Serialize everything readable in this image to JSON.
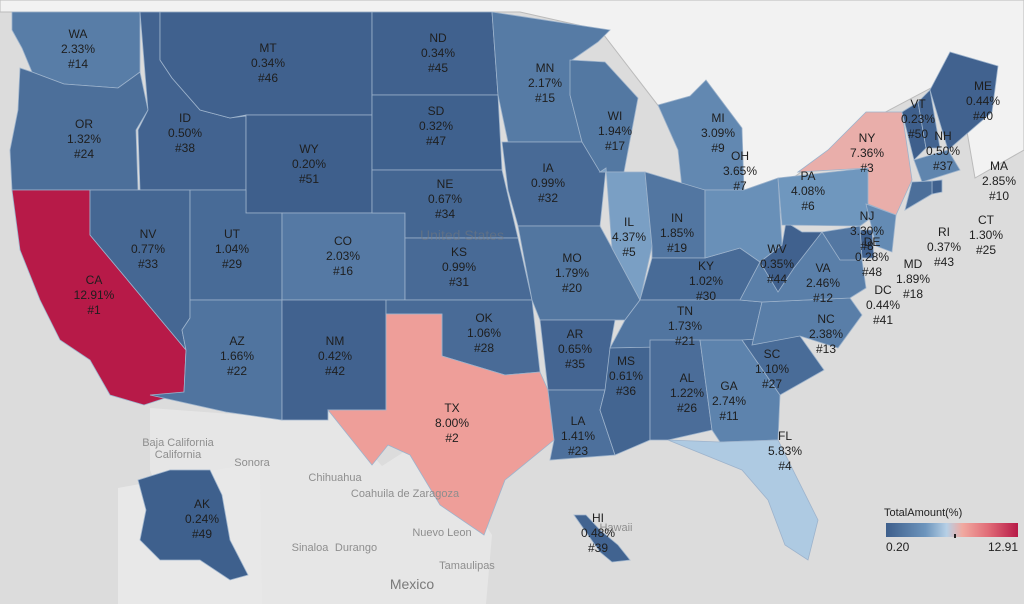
{
  "legend": {
    "title": "TotalAmount(%)",
    "min": "0.20",
    "max": "12.91"
  },
  "colors": {
    "low": "#3e5f8c",
    "mid": "#b6d0e6",
    "high": "#b71a48",
    "ocean": "#dcdcdc",
    "land": "#f2f2f2",
    "mexico": "#e6e6e6"
  },
  "geo_labels": [
    "Baja California",
    "Sonora",
    "Chihuahua",
    "Coahuila de Zaragoza",
    "Nuevo Leon",
    "Sinaloa",
    "Durango",
    "Tamaulipas",
    "Mexico",
    "United States",
    "Hawaii"
  ],
  "chart_data": {
    "type": "map",
    "measure": "TotalAmount(%)",
    "color_range": [
      0.2,
      12.91
    ],
    "states": [
      {
        "abbr": "WA",
        "value": 2.33,
        "rank": 14
      },
      {
        "abbr": "OR",
        "value": 1.32,
        "rank": 24
      },
      {
        "abbr": "CA",
        "value": 12.91,
        "rank": 1
      },
      {
        "abbr": "ID",
        "value": 0.5,
        "rank": 38
      },
      {
        "abbr": "NV",
        "value": 0.77,
        "rank": 33
      },
      {
        "abbr": "MT",
        "value": 0.34,
        "rank": 46
      },
      {
        "abbr": "WY",
        "value": 0.2,
        "rank": 51
      },
      {
        "abbr": "UT",
        "value": 1.04,
        "rank": 29
      },
      {
        "abbr": "AZ",
        "value": 1.66,
        "rank": 22
      },
      {
        "abbr": "CO",
        "value": 2.03,
        "rank": 16
      },
      {
        "abbr": "NM",
        "value": 0.42,
        "rank": 42
      },
      {
        "abbr": "ND",
        "value": 0.34,
        "rank": 45
      },
      {
        "abbr": "SD",
        "value": 0.32,
        "rank": 47
      },
      {
        "abbr": "NE",
        "value": 0.67,
        "rank": 34
      },
      {
        "abbr": "KS",
        "value": 0.99,
        "rank": 31
      },
      {
        "abbr": "OK",
        "value": 1.06,
        "rank": 28
      },
      {
        "abbr": "TX",
        "value": 8.0,
        "rank": 2
      },
      {
        "abbr": "MN",
        "value": 2.17,
        "rank": 15
      },
      {
        "abbr": "IA",
        "value": 0.99,
        "rank": 32
      },
      {
        "abbr": "MO",
        "value": 1.79,
        "rank": 20
      },
      {
        "abbr": "AR",
        "value": 0.65,
        "rank": 35
      },
      {
        "abbr": "LA",
        "value": 1.41,
        "rank": 23
      },
      {
        "abbr": "WI",
        "value": 1.94,
        "rank": 17
      },
      {
        "abbr": "IL",
        "value": 4.37,
        "rank": 5
      },
      {
        "abbr": "MS",
        "value": 0.61,
        "rank": 36
      },
      {
        "abbr": "MI",
        "value": 3.09,
        "rank": 9
      },
      {
        "abbr": "IN",
        "value": 1.85,
        "rank": 19
      },
      {
        "abbr": "KY",
        "value": 1.02,
        "rank": 30
      },
      {
        "abbr": "TN",
        "value": 1.73,
        "rank": 21
      },
      {
        "abbr": "AL",
        "value": 1.22,
        "rank": 26
      },
      {
        "abbr": "OH",
        "value": 3.65,
        "rank": 7
      },
      {
        "abbr": "GA",
        "value": 2.74,
        "rank": 11
      },
      {
        "abbr": "FL",
        "value": 5.83,
        "rank": 4
      },
      {
        "abbr": "SC",
        "value": 1.1,
        "rank": 27
      },
      {
        "abbr": "NC",
        "value": 2.38,
        "rank": 13
      },
      {
        "abbr": "VA",
        "value": 2.46,
        "rank": 12
      },
      {
        "abbr": "WV",
        "value": 0.35,
        "rank": 44
      },
      {
        "abbr": "PA",
        "value": 4.08,
        "rank": 6
      },
      {
        "abbr": "NY",
        "value": 7.36,
        "rank": 3
      },
      {
        "abbr": "NJ",
        "value": 3.3,
        "rank": 8
      },
      {
        "abbr": "DE",
        "value": 0.28,
        "rank": 48
      },
      {
        "abbr": "MD",
        "value": 1.89,
        "rank": 18
      },
      {
        "abbr": "DC",
        "value": 0.44,
        "rank": 41
      },
      {
        "abbr": "VT",
        "value": 0.23,
        "rank": 50
      },
      {
        "abbr": "NH",
        "value": 0.5,
        "rank": 37
      },
      {
        "abbr": "ME",
        "value": 0.44,
        "rank": 40
      },
      {
        "abbr": "MA",
        "value": 2.85,
        "rank": 10
      },
      {
        "abbr": "RI",
        "value": 0.37,
        "rank": 43
      },
      {
        "abbr": "CT",
        "value": 1.3,
        "rank": 25
      },
      {
        "abbr": "AK",
        "value": 0.24,
        "rank": 49
      },
      {
        "abbr": "HI",
        "value": 0.48,
        "rank": 39
      }
    ]
  }
}
